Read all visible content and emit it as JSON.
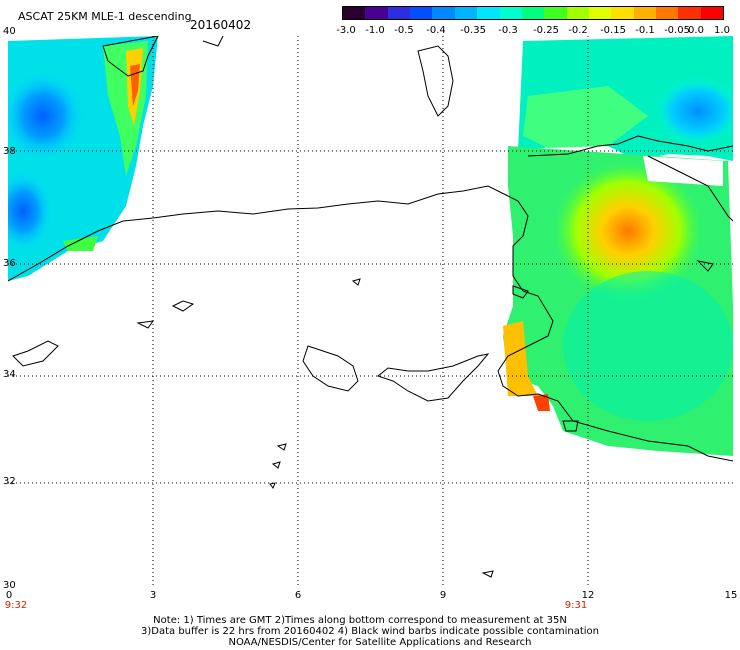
{
  "title": "ASCAT 25KM MLE-1 descending",
  "date": "20160402",
  "colorbar": {
    "labels": [
      "-3.0",
      "-1.0",
      "-0.5",
      "-0.4",
      "-0.35",
      "-0.3",
      "-0.25",
      "-0.2",
      "-0.15",
      "-0.1",
      "-0.05",
      "0.0",
      "1.0"
    ],
    "colors": [
      "#2b0030",
      "#4a0090",
      "#2e2ee0",
      "#0050ff",
      "#0088ff",
      "#00b4ff",
      "#00e6ff",
      "#00ffd0",
      "#00ff80",
      "#40ff20",
      "#a0ff00",
      "#e0ff00",
      "#ffe000",
      "#ffb000",
      "#ff7800",
      "#ff3000",
      "#ff0000"
    ]
  },
  "axes": {
    "y_labels": [
      "40",
      "38",
      "36",
      "34",
      "32",
      "30"
    ],
    "x_labels": [
      "0",
      "3",
      "6",
      "9",
      "12",
      "15"
    ],
    "times": [
      "9:32",
      "9:31"
    ]
  },
  "notes": [
    "Note: 1) Times are GMT 2)Times along bottom correspond to measurement at 35N",
    "3)Data buffer is 22 hrs from 20160402 4) Black wind barbs indicate possible contamination",
    "NOAA/NESDIS/Center for Satellite Applications and Research"
  ],
  "map": {
    "lon_range": [
      0,
      15
    ],
    "lat_range": [
      30,
      40
    ],
    "grid": true,
    "colors": {
      "coast": "#000000",
      "grid": "#000000",
      "time_label": "#cc2200"
    }
  }
}
